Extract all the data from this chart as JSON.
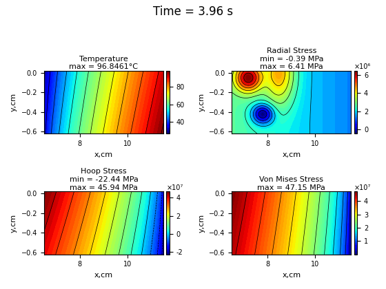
{
  "title": "Time = 3.96 s",
  "title_fontsize": 12,
  "title_fontweight": "normal",
  "subplots": [
    {
      "title_line1": "Temperature",
      "title_line2": "max = 96.8461°C",
      "xlabel": "x,cm",
      "ylabel": "y,cm",
      "colormap": "jet",
      "cbar_ticks": [
        40,
        60,
        80
      ],
      "cbar_min": 28,
      "cbar_max": 96.8461,
      "x_range": [
        6.5,
        11.5
      ],
      "y_range": [
        -0.62,
        0.02
      ],
      "x_ticks": [
        8,
        10
      ],
      "y_ticks": [
        0,
        -0.2,
        -0.4,
        -0.6
      ],
      "pattern": "temperature",
      "contour_levels": 12
    },
    {
      "title_line1": "Radial Stress",
      "title_line2": "min = -0.39 MPa",
      "title_line3": "max = 6.41 MPa",
      "xlabel": "x,cm",
      "ylabel": "y,cm",
      "colormap": "jet",
      "cbar_label": "×10⁶",
      "cbar_ticks": [
        0,
        2,
        4,
        6
      ],
      "cbar_min": -390000,
      "cbar_max": 6410000,
      "x_range": [
        6.5,
        11.5
      ],
      "y_range": [
        -0.62,
        0.02
      ],
      "x_ticks": [
        8,
        10
      ],
      "y_ticks": [
        0,
        -0.2,
        -0.4,
        -0.6
      ],
      "pattern": "radial_stress",
      "contour_levels": 12
    },
    {
      "title_line1": "Hoop Stress",
      "title_line2": "min = -22.44 MPa",
      "title_line3": "max = 45.94 MPa",
      "xlabel": "x,cm",
      "ylabel": "y,cm",
      "colormap": "jet",
      "cbar_label": "×10⁷",
      "cbar_ticks": [
        -2,
        0,
        2,
        4
      ],
      "cbar_min": -22440000,
      "cbar_max": 45940000,
      "x_range": [
        6.5,
        11.5
      ],
      "y_range": [
        -0.62,
        0.02
      ],
      "x_ticks": [
        8,
        10
      ],
      "y_ticks": [
        0,
        -0.2,
        -0.4,
        -0.6
      ],
      "pattern": "hoop_stress",
      "contour_levels": 12
    },
    {
      "title_line1": "Von Mises Stress",
      "title_line2": "max = 47.15 MPa",
      "xlabel": "x,cm",
      "ylabel": "y,cm",
      "colormap": "jet",
      "cbar_label": "×10⁷",
      "cbar_ticks": [
        1,
        2,
        3,
        4
      ],
      "cbar_min": 0,
      "cbar_max": 47150000,
      "x_range": [
        6.5,
        11.5
      ],
      "y_range": [
        -0.62,
        0.02
      ],
      "x_ticks": [
        8,
        10
      ],
      "y_ticks": [
        0,
        -0.2,
        -0.4,
        -0.6
      ],
      "pattern": "von_mises",
      "contour_levels": 12
    }
  ]
}
